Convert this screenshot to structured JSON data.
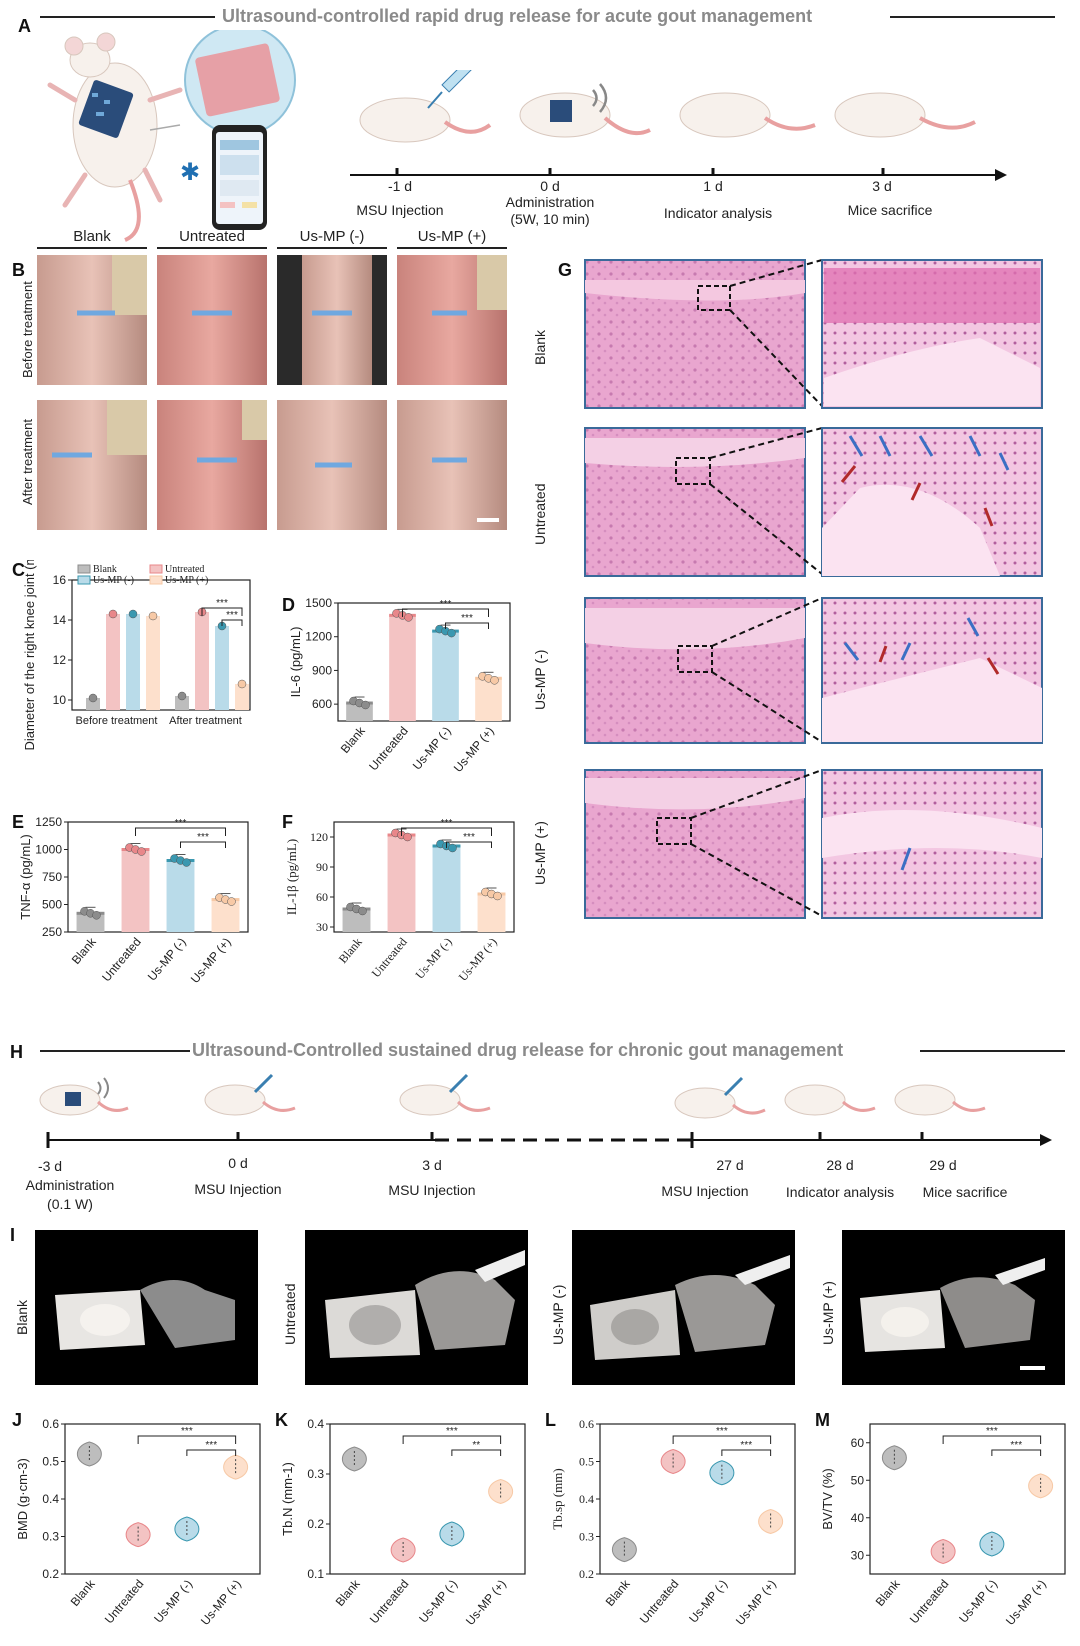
{
  "panel_letters": [
    "A",
    "B",
    "C",
    "D",
    "E",
    "F",
    "G",
    "H",
    "I",
    "J",
    "K",
    "L",
    "M"
  ],
  "banner_acute": "Ultrasound-controlled rapid drug release for acute gout management",
  "banner_chronic": "Ultrasound-Controlled sustained drug release for chronic gout management",
  "timeline_acute": [
    {
      "day": "-1 d",
      "label": "MSU Injection"
    },
    {
      "day": "0 d",
      "label": "Administration\n(5W, 10 min)"
    },
    {
      "day": "1 d",
      "label": "Indicator analysis"
    },
    {
      "day": "3 d",
      "label": "Mice sacrifice"
    }
  ],
  "timeline_chronic": [
    {
      "day": "-3 d",
      "label": "Administration\n(0.1 W)"
    },
    {
      "day": "0 d",
      "label": "MSU Injection"
    },
    {
      "day": "3 d",
      "label": "MSU Injection"
    },
    {
      "day": "27 d",
      "label": "MSU Injection"
    },
    {
      "day": "28 d",
      "label": "Indicator analysis"
    },
    {
      "day": "29 d",
      "label": "Mice sacrifice"
    }
  ],
  "groups": [
    "Blank",
    "Untreated",
    "Us-MP (-)",
    "Us-MP (+)"
  ],
  "photo_rows": [
    "Before treatment",
    "After treatment"
  ],
  "colors": {
    "blank": "#8c8c8c",
    "untreated": "#e8878a",
    "usmp_minus": "#3a98b0",
    "usmp_plus": "#f7c9a6",
    "blank_light": "#bdbdbd",
    "untreated_light": "#f3c3c3",
    "usmp_minus_light": "#b9dbe9",
    "usmp_plus_light": "#fde0cc",
    "histo_border": "#3a6a9a"
  },
  "chart_data": [
    {
      "id": "C",
      "type": "bar",
      "categories": [
        "Before treatment",
        "After treatment"
      ],
      "series": [
        {
          "name": "Blank",
          "values": [
            10.1,
            10.2
          ]
        },
        {
          "name": "Untreated",
          "values": [
            14.3,
            14.4
          ]
        },
        {
          "name": "Us-MP (-)",
          "values": [
            14.3,
            13.7
          ]
        },
        {
          "name": "Us-MP (+)",
          "values": [
            14.2,
            10.8
          ]
        }
      ],
      "ylabel": "Diameter of the right knee joint (mm)",
      "ylim": [
        9.5,
        16
      ],
      "yticks": [
        10,
        12,
        14,
        16
      ],
      "significance": [
        "***",
        "***"
      ]
    },
    {
      "id": "D",
      "type": "bar",
      "categories": [
        "Blank",
        "Untreated",
        "Us-MP (-)",
        "Us-MP (+)"
      ],
      "values": [
        610,
        1390,
        1250,
        830
      ],
      "ylabel": "IL-6 (pg/mL)",
      "ylim": [
        450,
        1500
      ],
      "yticks": [
        600,
        900,
        1200,
        1500
      ],
      "significance": [
        "***",
        "***"
      ]
    },
    {
      "id": "E",
      "type": "bar",
      "categories": [
        "Blank",
        "Untreated",
        "Us-MP (-)",
        "Us-MP (+)"
      ],
      "values": [
        420,
        1000,
        900,
        545
      ],
      "ylabel": "TNF-α (pg/mL)",
      "ylim": [
        250,
        1250
      ],
      "yticks": [
        250,
        500,
        750,
        1000,
        1250
      ],
      "significance": [
        "***",
        "***"
      ]
    },
    {
      "id": "F",
      "type": "bar",
      "categories": [
        "Blank",
        "Untreated",
        "Us-MP (-)",
        "Us-MP (+)"
      ],
      "values": [
        48,
        122,
        111,
        63
      ],
      "ylabel": "IL-1β (pg/mL)",
      "ylim": [
        25,
        135
      ],
      "yticks": [
        30,
        60,
        90,
        120
      ],
      "significance": [
        "***",
        "***"
      ]
    },
    {
      "id": "J",
      "type": "violin",
      "categories": [
        "Blank",
        "Untreated",
        "Us-MP (-)",
        "Us-MP (+)"
      ],
      "values": [
        0.52,
        0.305,
        0.32,
        0.485
      ],
      "ylabel": "BMD (g·cm-3)",
      "ylim": [
        0.2,
        0.6
      ],
      "yticks": [
        0.2,
        0.3,
        0.4,
        0.5,
        0.6
      ],
      "significance": [
        "***",
        "***"
      ]
    },
    {
      "id": "K",
      "type": "violin",
      "categories": [
        "Blank",
        "Untreated",
        "Us-MP (-)",
        "Us-MP (+)"
      ],
      "values": [
        0.33,
        0.148,
        0.18,
        0.265
      ],
      "ylabel": "Tb.N (mm-1)",
      "ylim": [
        0.1,
        0.4
      ],
      "yticks": [
        0.1,
        0.2,
        0.3,
        0.4
      ],
      "significance": [
        "***",
        "**"
      ]
    },
    {
      "id": "L",
      "type": "violin",
      "categories": [
        "Blank",
        "Untreated",
        "Us-MP (-)",
        "Us-MP (+)"
      ],
      "values": [
        0.265,
        0.5,
        0.47,
        0.34
      ],
      "ylabel": "Tb.sp (mm)",
      "ylim": [
        0.2,
        0.6
      ],
      "yticks": [
        0.2,
        0.3,
        0.4,
        0.5,
        0.6
      ],
      "significance": [
        "***",
        "***"
      ]
    },
    {
      "id": "M",
      "type": "violin",
      "categories": [
        "Blank",
        "Untreated",
        "Us-MP (-)",
        "Us-MP (+)"
      ],
      "values": [
        56,
        31,
        33,
        48.5
      ],
      "ylabel": "BV/TV (%)",
      "ylim": [
        25,
        65
      ],
      "yticks": [
        30,
        40,
        50,
        60
      ],
      "significance": [
        "***",
        "***"
      ]
    }
  ]
}
